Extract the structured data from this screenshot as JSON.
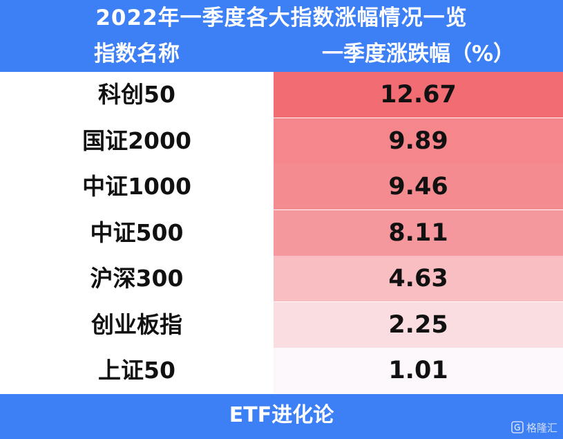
{
  "title": "2022年一季度各大指数涨幅情况一览",
  "columns": {
    "name": "指数名称",
    "value": "一季度涨跌幅（%）"
  },
  "footer": "ETF进化论",
  "watermark": "格隆汇",
  "colors": {
    "band": "#3d7ff5",
    "heat_high": "#f26d73",
    "heat_low": "#ffffff"
  },
  "chart_data": {
    "type": "table",
    "title": "2022年一季度各大指数涨幅情况一览",
    "columns": [
      "指数名称",
      "一季度涨跌幅（%）"
    ],
    "rows": [
      {
        "name": "科创50",
        "value": "12.67"
      },
      {
        "name": "国证2000",
        "value": "9.89"
      },
      {
        "name": "中证1000",
        "value": "9.46"
      },
      {
        "name": "中证500",
        "value": "8.11"
      },
      {
        "name": "沪深300",
        "value": "4.63"
      },
      {
        "name": "创业板指",
        "value": "2.25"
      },
      {
        "name": "上证50",
        "value": "1.01"
      }
    ]
  }
}
